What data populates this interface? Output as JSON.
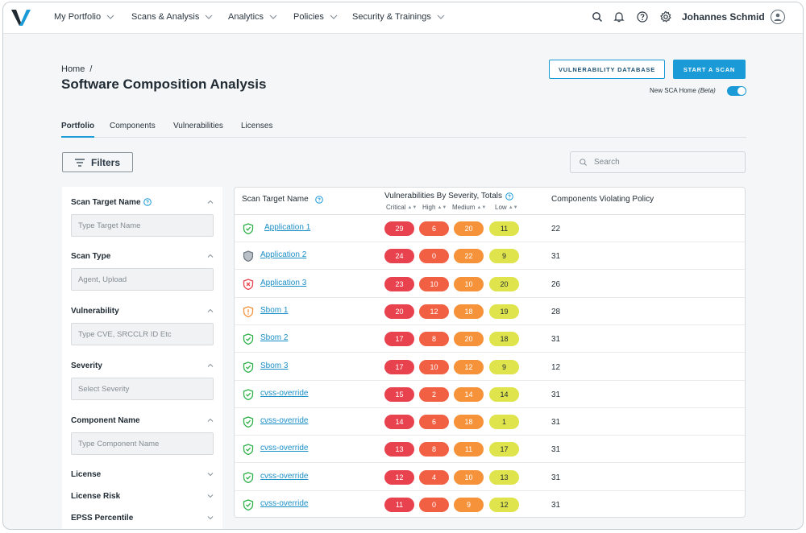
{
  "nav": {
    "items": [
      {
        "label": "My Portfolio"
      },
      {
        "label": "Scans & Analysis"
      },
      {
        "label": "Analytics"
      },
      {
        "label": "Policies"
      },
      {
        "label": "Security & Trainings"
      }
    ],
    "user_name": "Johannes Schmid",
    "icons": [
      "search-icon",
      "bell-icon",
      "help-icon",
      "gear-icon",
      "user-avatar-icon"
    ]
  },
  "header": {
    "breadcrumb": [
      "Home",
      "/"
    ],
    "title": "Software Composition Analysis",
    "vuln_db_button": "VULNERABILITY DATABASE",
    "start_scan_button": "START A SCAN",
    "beta_label_prefix": "New SCA Home ",
    "beta_label_em": "(Beta)",
    "beta_toggle_on": true
  },
  "tabs": [
    {
      "label": "Portfolio",
      "active": true
    },
    {
      "label": "Components",
      "active": false
    },
    {
      "label": "Vulnerabilities",
      "active": false
    },
    {
      "label": "Licenses",
      "active": false
    }
  ],
  "toolbar": {
    "filters_label": "Filters",
    "search_placeholder": "Search"
  },
  "filters": [
    {
      "title": "Scan Target Name",
      "placeholder": "Type Target Name",
      "expanded": true
    },
    {
      "title": "Scan Type",
      "placeholder": "Agent, Upload",
      "expanded": true
    },
    {
      "title": "Vulnerability",
      "placeholder": "Type CVE, SRCCLR ID Etc",
      "expanded": true
    },
    {
      "title": "Severity",
      "placeholder": "Select Severity",
      "expanded": true
    },
    {
      "title": "Component Name",
      "placeholder": "Type Component Name",
      "expanded": true
    },
    {
      "title": "License",
      "expanded": false
    },
    {
      "title": "License Risk",
      "expanded": false
    },
    {
      "title": "EPSS Percentile",
      "expanded": false
    }
  ],
  "table": {
    "col_name": "Scan Target Name",
    "col_vulns": "Vulnerabilities By Severity, Totals",
    "col_policy": "Components Violating Policy",
    "sub_critical": "Critical",
    "sub_high": "High",
    "sub_medium": "Medium",
    "sub_low": "Low",
    "rows": [
      {
        "name": "Application 1",
        "status": "pass",
        "critical": "29",
        "high": "6",
        "medium": "20",
        "low": "11",
        "violations": "22"
      },
      {
        "name": "Application 2",
        "status": "neutral",
        "critical": "24",
        "high": "0",
        "medium": "22",
        "low": "9",
        "violations": "31"
      },
      {
        "name": "Application 3",
        "status": "fail",
        "critical": "23",
        "high": "10",
        "medium": "10",
        "low": "20",
        "violations": "26"
      },
      {
        "name": "Sbom 1",
        "status": "warn",
        "critical": "20",
        "high": "12",
        "medium": "18",
        "low": "19",
        "violations": "28"
      },
      {
        "name": "Sbom 2",
        "status": "pass",
        "critical": "17",
        "high": "8",
        "medium": "20",
        "low": "18",
        "violations": "31"
      },
      {
        "name": "Sbom 3",
        "status": "pass",
        "critical": "17",
        "high": "10",
        "medium": "12",
        "low": "9",
        "violations": "12"
      },
      {
        "name": "cvss-override",
        "status": "pass",
        "critical": "15",
        "high": "2",
        "medium": "14",
        "low": "14",
        "violations": "31"
      },
      {
        "name": "cvss-override",
        "status": "pass",
        "critical": "14",
        "high": "6",
        "medium": "18",
        "low": "1",
        "violations": "31"
      },
      {
        "name": "cvss-override",
        "status": "pass",
        "critical": "13",
        "high": "8",
        "medium": "11",
        "low": "17",
        "violations": "31"
      },
      {
        "name": "cvss-override",
        "status": "pass",
        "critical": "12",
        "high": "4",
        "medium": "10",
        "low": "13",
        "violations": "31"
      },
      {
        "name": "cvss-override",
        "status": "pass",
        "critical": "11",
        "high": "0",
        "medium": "9",
        "low": "12",
        "violations": "31"
      }
    ]
  },
  "colors": {
    "accent": "#1a9ad6",
    "critical": "#e8424f",
    "high": "#f26044",
    "medium": "#f5923a",
    "low": "#dfe44c",
    "pass": "#2fb14a",
    "fail": "#e8424f",
    "warn": "#f5923a",
    "neutral": "#8a949c"
  }
}
